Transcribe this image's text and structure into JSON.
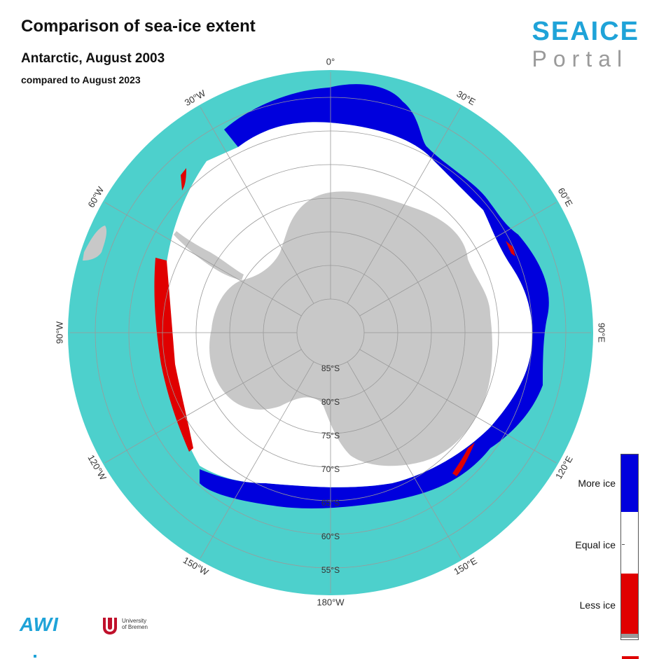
{
  "header": {
    "title": "Comparison of sea-ice extent",
    "subtitle": "Antarctic, August 2003",
    "comparison": "compared to August 2023"
  },
  "logo": {
    "top": "SEAICE",
    "bottom": "Portal"
  },
  "map": {
    "longitude_labels": [
      "0°",
      "30°E",
      "60°E",
      "90°E",
      "120°E",
      "150°E",
      "180°W",
      "150°W",
      "120°W",
      "90°W",
      "60°W",
      "30°W"
    ],
    "latitude_labels": [
      "85°S",
      "80°S",
      "75°S",
      "70°S",
      "65°S",
      "60°S",
      "55°S"
    ],
    "colors": {
      "ocean": "#4dd0cc",
      "equal_ice": "#ffffff",
      "more_ice": "#0000dd",
      "less_ice": "#e00000",
      "land": "#c8c8c8",
      "grid": "#9a9a9a"
    }
  },
  "legend": {
    "more_label": "More ice",
    "equal_label": "Equal ice",
    "less_label": "Less ice"
  },
  "footer": {
    "awi_logo": "AWI",
    "university_line1": "University",
    "university_line2": "of Bremen"
  }
}
